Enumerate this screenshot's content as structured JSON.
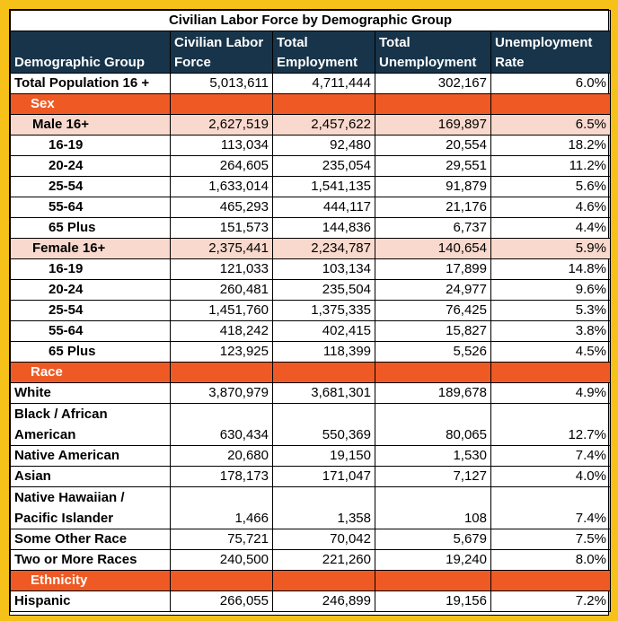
{
  "title": "Civilian Labor Force by Demographic Group",
  "headers": [
    "Demographic Group",
    "Civilian Labor Force",
    "Total Employment",
    "Total Unemployment",
    "Unemployment Rate"
  ],
  "rows": [
    {
      "kind": "total",
      "label": "Total Population 16 +",
      "values": [
        "5,013,611",
        "4,711,444",
        "302,167",
        "6.0%"
      ]
    },
    {
      "kind": "section",
      "label": "Sex"
    },
    {
      "kind": "subtotal",
      "label": "Male 16+",
      "values": [
        "2,627,519",
        "2,457,622",
        "169,897",
        "6.5%"
      ]
    },
    {
      "kind": "age",
      "label": "16-19",
      "values": [
        "113,034",
        "92,480",
        "20,554",
        "18.2%"
      ]
    },
    {
      "kind": "age",
      "label": "20-24",
      "values": [
        "264,605",
        "235,054",
        "29,551",
        "11.2%"
      ]
    },
    {
      "kind": "age",
      "label": "25-54",
      "values": [
        "1,633,014",
        "1,541,135",
        "91,879",
        "5.6%"
      ]
    },
    {
      "kind": "age",
      "label": "55-64",
      "values": [
        "465,293",
        "444,117",
        "21,176",
        "4.6%"
      ]
    },
    {
      "kind": "age",
      "label": "65 Plus",
      "values": [
        "151,573",
        "144,836",
        "6,737",
        "4.4%"
      ]
    },
    {
      "kind": "subtotal",
      "label": "Female 16+",
      "values": [
        "2,375,441",
        "2,234,787",
        "140,654",
        "5.9%"
      ]
    },
    {
      "kind": "age",
      "label": "16-19",
      "values": [
        "121,033",
        "103,134",
        "17,899",
        "14.8%"
      ]
    },
    {
      "kind": "age",
      "label": "20-24",
      "values": [
        "260,481",
        "235,504",
        "24,977",
        "9.6%"
      ]
    },
    {
      "kind": "age",
      "label": "25-54",
      "values": [
        "1,451,760",
        "1,375,335",
        "76,425",
        "5.3%"
      ]
    },
    {
      "kind": "age",
      "label": "55-64",
      "values": [
        "418,242",
        "402,415",
        "15,827",
        "3.8%"
      ]
    },
    {
      "kind": "age",
      "label": "65 Plus",
      "values": [
        "123,925",
        "118,399",
        "5,526",
        "4.5%"
      ]
    },
    {
      "kind": "section",
      "label": "Race"
    },
    {
      "kind": "group",
      "label": "White",
      "values": [
        "3,870,979",
        "3,681,301",
        "189,678",
        "4.9%"
      ]
    },
    {
      "kind": "group-tall",
      "label": "Black / African American",
      "values": [
        "630,434",
        "550,369",
        "80,065",
        "12.7%"
      ]
    },
    {
      "kind": "group",
      "label": "Native American",
      "values": [
        "20,680",
        "19,150",
        "1,530",
        "7.4%"
      ]
    },
    {
      "kind": "group",
      "label": "Asian",
      "values": [
        "178,173",
        "171,047",
        "7,127",
        "4.0%"
      ]
    },
    {
      "kind": "group-tall",
      "label": "Native Hawaiian / Pacific Islander",
      "values": [
        "1,466",
        "1,358",
        "108",
        "7.4%"
      ]
    },
    {
      "kind": "group",
      "label": "Some Other Race",
      "values": [
        "75,721",
        "70,042",
        "5,679",
        "7.5%"
      ]
    },
    {
      "kind": "group",
      "label": "Two or More Races",
      "values": [
        "240,500",
        "221,260",
        "19,240",
        "8.0%"
      ]
    },
    {
      "kind": "section",
      "label": "Ethnicity"
    },
    {
      "kind": "group",
      "label": "Hispanic",
      "values": [
        "266,055",
        "246,899",
        "19,156",
        "7.2%"
      ]
    }
  ]
}
